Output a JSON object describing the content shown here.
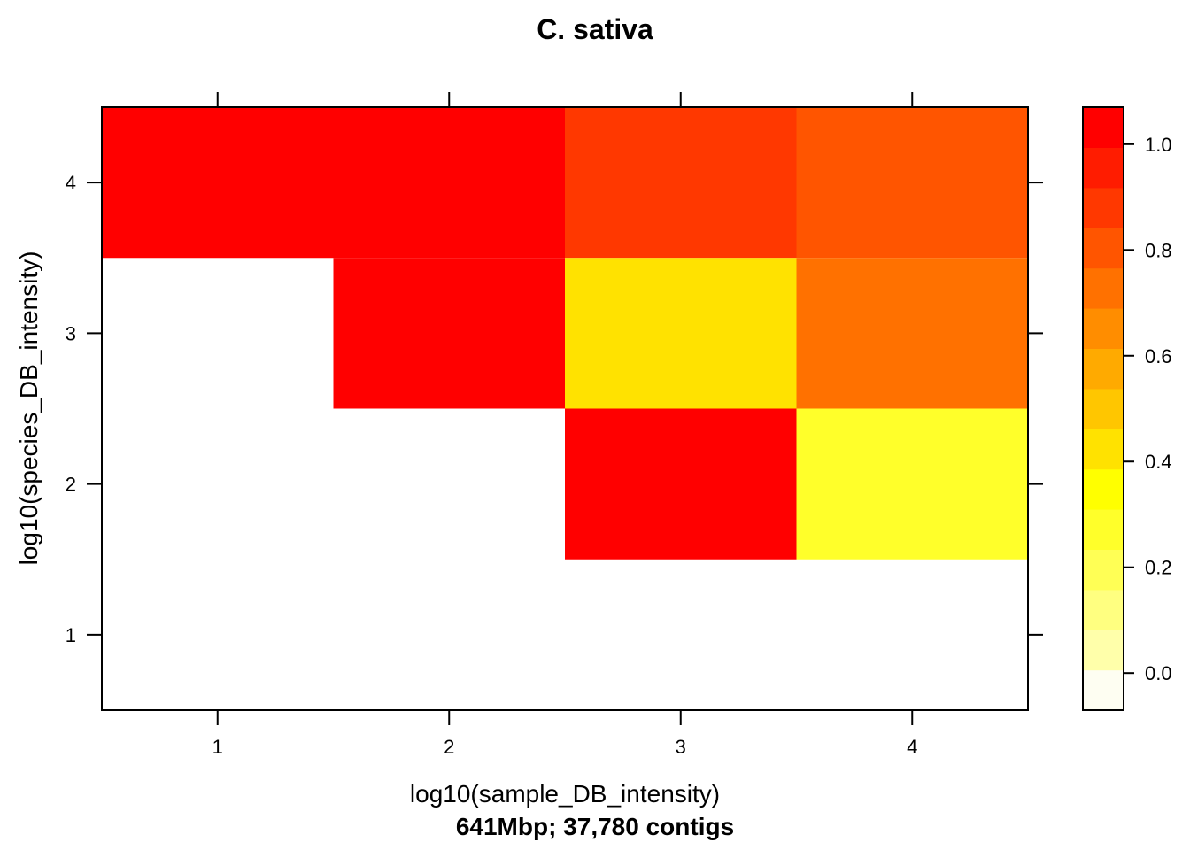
{
  "chart_data": {
    "type": "heatmap",
    "title": "C. sativa",
    "xlabel": "log10(sample_DB_intensity)",
    "sublabel": "641Mbp; 37,780 contigs",
    "ylabel": "log10(species_DB_intensity)",
    "x_categories": [
      1,
      2,
      3,
      4
    ],
    "y_categories": [
      1,
      2,
      3,
      4
    ],
    "x_ticks": [
      "1",
      "2",
      "3",
      "4"
    ],
    "y_ticks": [
      "1",
      "2",
      "3",
      "4"
    ],
    "xlim": [
      0.5,
      4.5
    ],
    "ylim": [
      0.5,
      4.5
    ],
    "cells": [
      {
        "x": 1,
        "y": 4,
        "value": 1.0
      },
      {
        "x": 2,
        "y": 4,
        "value": 1.0
      },
      {
        "x": 3,
        "y": 4,
        "value": 0.9
      },
      {
        "x": 4,
        "y": 4,
        "value": 0.8
      },
      {
        "x": 2,
        "y": 3,
        "value": 1.0
      },
      {
        "x": 3,
        "y": 3,
        "value": 0.45
      },
      {
        "x": 4,
        "y": 3,
        "value": 0.72
      },
      {
        "x": 3,
        "y": 2,
        "value": 1.0
      },
      {
        "x": 4,
        "y": 2,
        "value": 0.25
      }
    ],
    "colorbar": {
      "range": [
        -0.07,
        1.07
      ],
      "ticks": [
        "0.0",
        "0.2",
        "0.4",
        "0.6",
        "0.8",
        "1.0"
      ],
      "tick_values": [
        0,
        0.2,
        0.4,
        0.6,
        0.8,
        1.0
      ],
      "colors": [
        "#FEFEF2",
        "#FFFFAA",
        "#FFFF80",
        "#FFFF55",
        "#FFFF2A",
        "#FFFF00",
        "#FFE200",
        "#FFC600",
        "#FFAA00",
        "#FF8D00",
        "#FF7100",
        "#FF5500",
        "#FF3800",
        "#FF1C00",
        "#FF0000"
      ]
    }
  }
}
